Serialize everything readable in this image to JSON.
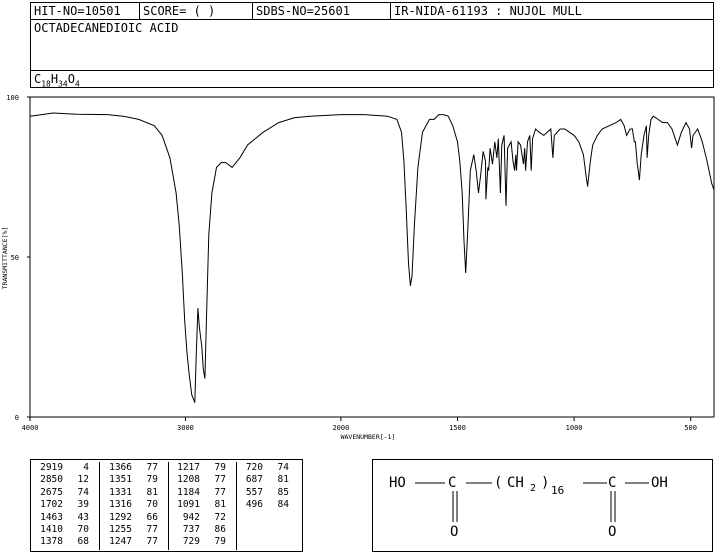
{
  "header": {
    "hit_no": "HIT-NO=10501",
    "score": "SCORE=  (   )",
    "sdbs_no": "SDBS-NO=25601",
    "method": "IR-NIDA-61193 : NUJOL MULL",
    "compound_name": "OCTADECANEDIOIC ACID",
    "formula": {
      "C": "C",
      "c_count": "18",
      "H": "H",
      "h_count": "34",
      "O": "O",
      "o_count": "4"
    }
  },
  "chart_data": {
    "type": "line",
    "xlabel": "WAVENUMBER[-1]",
    "ylabel": "TRANSMITTANCE[%]",
    "xlim": [
      4000,
      400
    ],
    "ylim": [
      0,
      100
    ],
    "x_ticks": [
      4000,
      3000,
      2000,
      1500,
      1000,
      500
    ],
    "y_ticks": [
      0,
      50,
      100
    ],
    "series": [
      {
        "points": [
          [
            4000,
            94
          ],
          [
            3850,
            95
          ],
          [
            3700,
            94.6
          ],
          [
            3500,
            94.5
          ],
          [
            3400,
            94
          ],
          [
            3300,
            93
          ],
          [
            3200,
            91
          ],
          [
            3150,
            88
          ],
          [
            3100,
            81
          ],
          [
            3060,
            70
          ],
          [
            3040,
            60
          ],
          [
            3020,
            45
          ],
          [
            3005,
            30
          ],
          [
            2990,
            20
          ],
          [
            2975,
            13
          ],
          [
            2960,
            7
          ],
          [
            2940,
            4.5
          ],
          [
            2930,
            20
          ],
          [
            2920,
            34
          ],
          [
            2910,
            28
          ],
          [
            2895,
            22
          ],
          [
            2885,
            15
          ],
          [
            2875,
            12
          ],
          [
            2865,
            30
          ],
          [
            2850,
            57
          ],
          [
            2830,
            70
          ],
          [
            2800,
            78
          ],
          [
            2770,
            79.5
          ],
          [
            2740,
            79.5
          ],
          [
            2700,
            78
          ],
          [
            2650,
            81
          ],
          [
            2600,
            85
          ],
          [
            2500,
            89
          ],
          [
            2400,
            92
          ],
          [
            2300,
            93.5
          ],
          [
            2200,
            94
          ],
          [
            2000,
            94.5
          ],
          [
            1900,
            94.5
          ],
          [
            1800,
            94
          ],
          [
            1760,
            93
          ],
          [
            1740,
            89
          ],
          [
            1730,
            80
          ],
          [
            1720,
            65
          ],
          [
            1710,
            48
          ],
          [
            1702,
            41
          ],
          [
            1695,
            44
          ],
          [
            1685,
            60
          ],
          [
            1670,
            78
          ],
          [
            1650,
            89
          ],
          [
            1620,
            93
          ],
          [
            1600,
            93
          ],
          [
            1580,
            94.5
          ],
          [
            1560,
            94.5
          ],
          [
            1540,
            94
          ],
          [
            1520,
            91
          ],
          [
            1500,
            86
          ],
          [
            1490,
            80
          ],
          [
            1480,
            70
          ],
          [
            1472,
            55
          ],
          [
            1465,
            45
          ],
          [
            1455,
            60
          ],
          [
            1445,
            77
          ],
          [
            1430,
            82
          ],
          [
            1420,
            77
          ],
          [
            1410,
            70
          ],
          [
            1400,
            76
          ],
          [
            1390,
            83
          ],
          [
            1380,
            80
          ],
          [
            1378,
            68
          ],
          [
            1370,
            78
          ],
          [
            1366,
            77
          ],
          [
            1360,
            84
          ],
          [
            1350,
            79
          ],
          [
            1340,
            86
          ],
          [
            1331,
            81
          ],
          [
            1325,
            87
          ],
          [
            1316,
            70
          ],
          [
            1310,
            85
          ],
          [
            1300,
            88
          ],
          [
            1292,
            66
          ],
          [
            1285,
            84
          ],
          [
            1270,
            86
          ],
          [
            1262,
            80
          ],
          [
            1255,
            77
          ],
          [
            1250,
            82
          ],
          [
            1247,
            77
          ],
          [
            1240,
            86
          ],
          [
            1230,
            85
          ],
          [
            1217,
            79
          ],
          [
            1212,
            84
          ],
          [
            1208,
            77
          ],
          [
            1200,
            86
          ],
          [
            1190,
            88
          ],
          [
            1184,
            77
          ],
          [
            1178,
            87
          ],
          [
            1165,
            90
          ],
          [
            1150,
            89
          ],
          [
            1130,
            88
          ],
          [
            1100,
            90
          ],
          [
            1091,
            81
          ],
          [
            1085,
            88
          ],
          [
            1060,
            90
          ],
          [
            1040,
            90
          ],
          [
            1020,
            89
          ],
          [
            1000,
            88
          ],
          [
            980,
            86
          ],
          [
            960,
            82
          ],
          [
            950,
            76
          ],
          [
            942,
            72
          ],
          [
            930,
            80
          ],
          [
            920,
            85
          ],
          [
            900,
            88
          ],
          [
            880,
            90
          ],
          [
            850,
            91
          ],
          [
            820,
            92
          ],
          [
            800,
            93
          ],
          [
            785,
            91
          ],
          [
            775,
            88
          ],
          [
            760,
            90
          ],
          [
            750,
            90
          ],
          [
            742,
            86
          ],
          [
            737,
            86
          ],
          [
            729,
            79
          ],
          [
            725,
            77
          ],
          [
            720,
            74
          ],
          [
            712,
            82
          ],
          [
            700,
            88
          ],
          [
            690,
            91
          ],
          [
            687,
            81
          ],
          [
            680,
            88
          ],
          [
            670,
            93
          ],
          [
            660,
            94
          ],
          [
            640,
            93
          ],
          [
            620,
            92
          ],
          [
            600,
            92
          ],
          [
            580,
            90
          ],
          [
            557,
            85
          ],
          [
            540,
            89
          ],
          [
            520,
            92
          ],
          [
            505,
            90
          ],
          [
            496,
            84
          ],
          [
            490,
            88
          ],
          [
            470,
            90
          ],
          [
            450,
            86
          ],
          [
            430,
            80
          ],
          [
            410,
            73
          ],
          [
            400,
            71
          ]
        ]
      }
    ]
  },
  "peak_table": {
    "columns": [
      [
        [
          "2919",
          "4"
        ],
        [
          "2850",
          "12"
        ],
        [
          "2675",
          "74"
        ],
        [
          "1702",
          "39"
        ],
        [
          "1463",
          "43"
        ],
        [
          "1410",
          "70"
        ],
        [
          "1378",
          "68"
        ]
      ],
      [
        [
          "1366",
          "77"
        ],
        [
          "1351",
          "79"
        ],
        [
          "1331",
          "81"
        ],
        [
          "1316",
          "70"
        ],
        [
          "1292",
          "66"
        ],
        [
          "1255",
          "77"
        ],
        [
          "1247",
          "77"
        ]
      ],
      [
        [
          "1217",
          "79"
        ],
        [
          "1208",
          "77"
        ],
        [
          "1184",
          "77"
        ],
        [
          "1091",
          "81"
        ],
        [
          "942",
          "72"
        ],
        [
          "737",
          "86"
        ],
        [
          "729",
          "79"
        ]
      ],
      [
        [
          "720",
          "74"
        ],
        [
          "687",
          "81"
        ],
        [
          "557",
          "85"
        ],
        [
          "496",
          "84"
        ]
      ]
    ]
  },
  "structure": {
    "ho_left": "HO",
    "c_left": "C",
    "o_left": "O",
    "paren_open": "(",
    "ch": "CH",
    "sub2": "2",
    "paren_close": ")",
    "repeat": "16",
    "c_right": "C",
    "oh_right": "OH",
    "o_right": "O"
  }
}
